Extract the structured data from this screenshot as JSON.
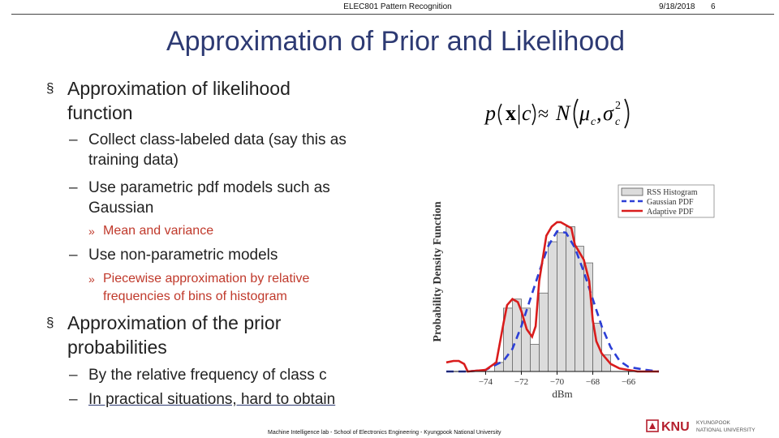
{
  "header": {
    "title": "ELEC801 Pattern Recognition",
    "date": "9/18/2018",
    "page_number": "6"
  },
  "slide_title": "Approximation of Prior and Likelihood",
  "bullets": {
    "likelihood": {
      "line1": "Approximation of likelihood",
      "line2": "function",
      "sub1_line1": "Collect class-labeled data (say this as",
      "sub1_line2": "training data)",
      "sub2_line1": "Use parametric pdf models such as",
      "sub2_line2": "Gaussian",
      "sub2_sub1": "Mean and variance",
      "sub3": "Use non-parametric models",
      "sub3_sub1_line1": "Piecewise approximation by relative",
      "sub3_sub1_line2": "frequencies of bins of histogram"
    },
    "prior": {
      "line1": "Approximation of the prior",
      "line2": "probabilities",
      "sub1": "By the relative frequency of class c",
      "sub2": "In practical situations, hard to obtain"
    },
    "marker_l1": "§",
    "marker_l2": "–",
    "marker_l3": "»"
  },
  "formula": {
    "p": "p",
    "x": "x",
    "bar": "|",
    "c": "c",
    "approx": "≈",
    "N": "N",
    "mu": "μ",
    "sigma": "σ",
    "sub_c": "c",
    "sup_2": "2",
    "comma": ","
  },
  "chart_data": {
    "type": "bar",
    "ylabel": "Probability Density Function",
    "xlabel": "dBm",
    "xlim": [
      -76.2,
      -64.3
    ],
    "ylim": [
      0,
      1
    ],
    "x_ticks": [
      "−74",
      "−72",
      "−70",
      "−68",
      "−66"
    ],
    "x_tick_values": [
      -74,
      -72,
      -70,
      -68,
      -66
    ],
    "legend": {
      "placement": "top-right",
      "entries": [
        "RSS Histogram",
        "Gaussian PDF",
        "Adaptive PDF"
      ]
    },
    "bins": {
      "left_edges": [
        -73.5,
        -73,
        -72.5,
        -72,
        -71.5,
        -71,
        -70.5,
        -70,
        -69.5,
        -69,
        -68.5,
        -68,
        -67.5
      ],
      "width": 0.5,
      "values": [
        0.06,
        0.42,
        0.48,
        0.42,
        0.18,
        0.52,
        0.86,
        0.92,
        0.96,
        0.83,
        0.72,
        0.32,
        0.11
      ]
    },
    "series": [
      {
        "name": "Gaussian PDF",
        "color": "#2c3fd6",
        "style": "dashed",
        "x": [
          -76.2,
          -75,
          -74,
          -73,
          -72.5,
          -72,
          -71.5,
          -71,
          -70.5,
          -70,
          -69.5,
          -69,
          -68.5,
          -68,
          -67.5,
          -67,
          -66.5,
          -66,
          -65,
          -64.3
        ],
        "y": [
          0.0,
          0.0,
          0.01,
          0.07,
          0.15,
          0.3,
          0.48,
          0.66,
          0.83,
          0.93,
          0.92,
          0.82,
          0.66,
          0.48,
          0.3,
          0.16,
          0.07,
          0.03,
          0.01,
          0.0
        ]
      },
      {
        "name": "Adaptive PDF",
        "color": "#d91c1c",
        "style": "solid",
        "x": [
          -76.2,
          -75.8,
          -75.5,
          -75.2,
          -75,
          -74,
          -73.4,
          -73,
          -72.8,
          -72.5,
          -72.2,
          -72,
          -71.7,
          -71.4,
          -71.2,
          -71,
          -70.6,
          -70.3,
          -70,
          -69.8,
          -69.5,
          -69.2,
          -69,
          -68.8,
          -68.5,
          -68.2,
          -68,
          -67.8,
          -67.5,
          -67,
          -66.5,
          -66,
          -65.5,
          -65,
          -64.3
        ],
        "y": [
          0.06,
          0.07,
          0.07,
          0.05,
          0.0,
          0.01,
          0.06,
          0.32,
          0.44,
          0.48,
          0.46,
          0.4,
          0.28,
          0.23,
          0.3,
          0.6,
          0.9,
          0.96,
          0.99,
          0.99,
          0.97,
          0.95,
          0.84,
          0.8,
          0.74,
          0.6,
          0.34,
          0.2,
          0.12,
          0.05,
          0.02,
          0.01,
          0.0,
          0.0,
          0.0
        ]
      }
    ]
  },
  "footer": "Machine Intelligence lab - School of Electronics Engineering - Kyungpook National University",
  "logo": {
    "mark": "KNU",
    "name_line1": "KYUNGPOOK",
    "name_line2": "NATIONAL UNIVERSITY",
    "color": "#b5202e"
  }
}
